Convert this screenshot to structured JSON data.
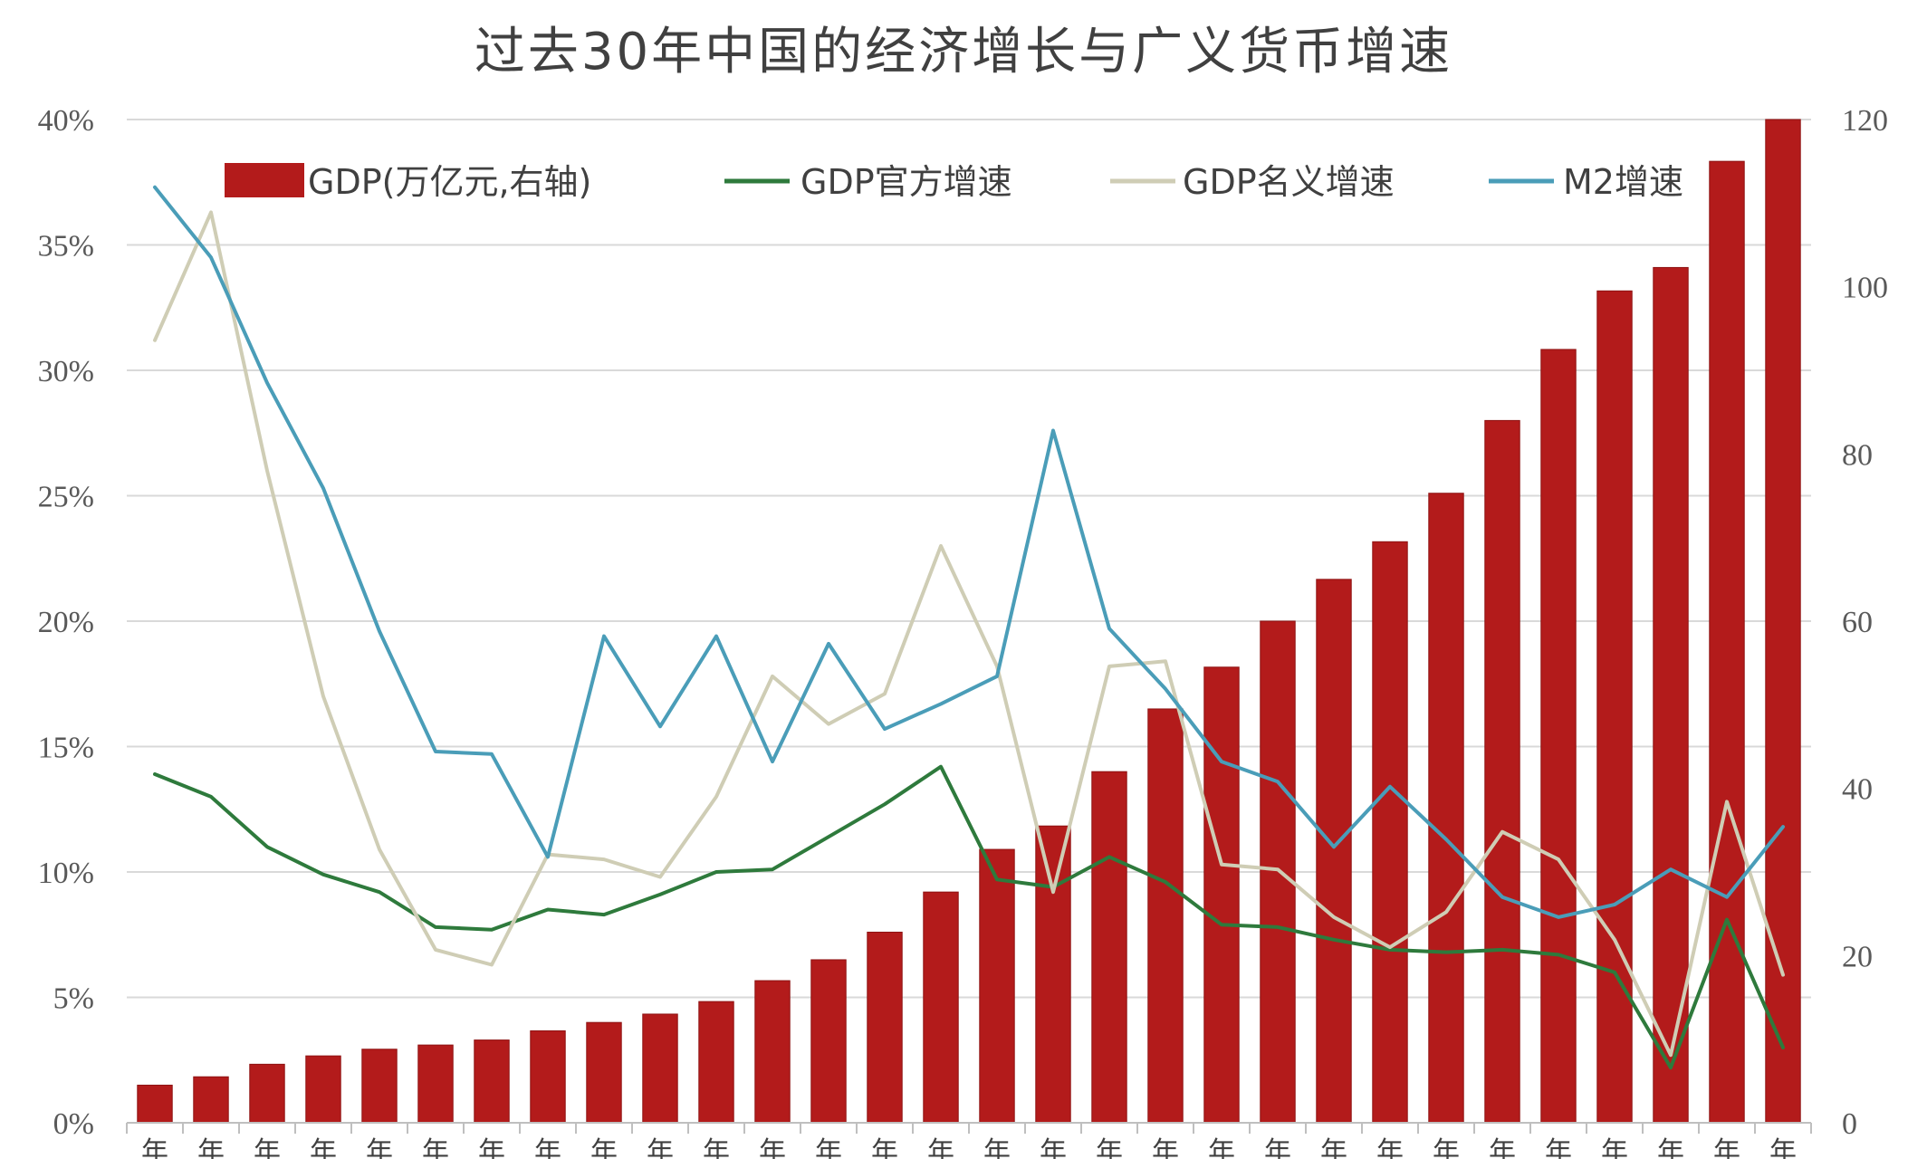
{
  "chart_data": {
    "type": "bar",
    "title": "过去30年中国的经济增长与广义货币增速",
    "categories": [
      "年",
      "年",
      "年",
      "年",
      "年",
      "年",
      "年",
      "年",
      "年",
      "年",
      "年",
      "年",
      "年",
      "年",
      "年",
      "年",
      "年",
      "年",
      "年",
      "年",
      "年",
      "年",
      "年",
      "年",
      "年",
      "年",
      "年",
      "年",
      "年",
      "年"
    ],
    "y_left": {
      "min": 0,
      "max": 40,
      "step": 5,
      "tick_labels": [
        "0%",
        "5%",
        "10%",
        "15%",
        "20%",
        "25%",
        "30%",
        "35%",
        "40%"
      ]
    },
    "y_right": {
      "min": 0,
      "max": 120,
      "step": 20,
      "tick_labels": [
        "0",
        "20",
        "40",
        "60",
        "80",
        "100",
        "120"
      ]
    },
    "grid": true,
    "legend_position": "top",
    "series": [
      {
        "name": "GDP(万亿元,右轴)",
        "type": "bar",
        "axis": "right",
        "color": "#B31B1B",
        "values": [
          4.5,
          5.5,
          7.0,
          8.0,
          8.8,
          9.3,
          9.9,
          11.0,
          12.0,
          13.0,
          14.5,
          17.0,
          19.5,
          22.8,
          27.6,
          32.7,
          35.5,
          42.0,
          49.5,
          54.5,
          60.0,
          65.0,
          69.5,
          75.3,
          84.0,
          92.5,
          99.5,
          102.3,
          115.0,
          120.0
        ]
      },
      {
        "name": "GDP官方增速",
        "type": "line",
        "axis": "left",
        "color": "#2E7A3C",
        "values": [
          13.9,
          13.0,
          11.0,
          9.9,
          9.2,
          7.8,
          7.7,
          8.5,
          8.3,
          9.1,
          10.0,
          10.1,
          11.4,
          12.7,
          14.2,
          9.7,
          9.4,
          10.6,
          9.6,
          7.9,
          7.8,
          7.3,
          6.9,
          6.8,
          6.9,
          6.7,
          6.0,
          2.2,
          8.1,
          3.0
        ]
      },
      {
        "name": "GDP名义增速",
        "type": "line",
        "axis": "left",
        "color": "#CFCDB5",
        "values": [
          31.2,
          36.3,
          26.0,
          17.0,
          10.9,
          6.9,
          6.3,
          10.7,
          10.5,
          9.8,
          13.0,
          17.8,
          15.9,
          17.1,
          23.0,
          18.2,
          9.2,
          18.2,
          18.4,
          10.3,
          10.1,
          8.2,
          7.0,
          8.4,
          11.6,
          10.5,
          7.3,
          2.7,
          12.8,
          5.9
        ]
      },
      {
        "name": "M2增速",
        "type": "line",
        "axis": "left",
        "color": "#4A9DB8",
        "values": [
          37.3,
          34.5,
          29.5,
          25.3,
          19.6,
          14.8,
          14.7,
          10.6,
          19.4,
          15.8,
          19.4,
          14.4,
          19.1,
          15.7,
          16.7,
          17.8,
          27.6,
          19.7,
          17.3,
          14.4,
          13.6,
          11.0,
          13.4,
          11.3,
          9.0,
          8.2,
          8.7,
          10.1,
          9.0,
          11.8
        ]
      }
    ]
  }
}
